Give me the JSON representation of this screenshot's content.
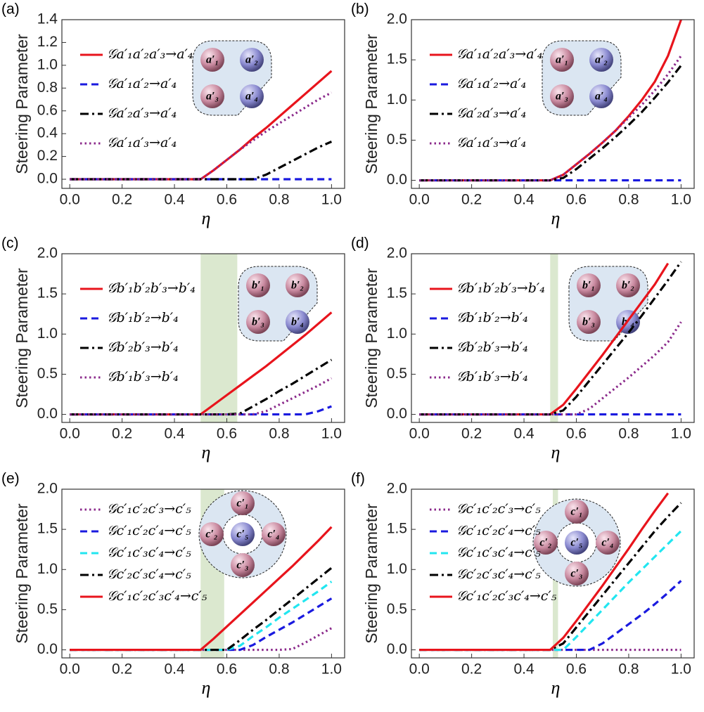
{
  "chart_data": [
    {
      "type": "line",
      "panel_label": "(a)",
      "ylabel": "Steering Parameter",
      "xlabel": "η",
      "x": [
        0,
        0.1,
        0.2,
        0.3,
        0.4,
        0.5,
        0.55,
        0.6,
        0.65,
        0.7,
        0.75,
        0.8,
        0.85,
        0.9,
        0.95,
        1.0
      ],
      "xlim": [
        -0.03,
        1.05
      ],
      "ylim": [
        -0.08,
        1.4
      ],
      "xticks": [
        {
          "value": 0,
          "label": "0.0"
        },
        0.2,
        0.4,
        0.6,
        0.8,
        {
          "value": 1,
          "label": "1.0"
        }
      ],
      "yticks": [
        {
          "value": 0,
          "label": "0.0"
        },
        0.2,
        0.4,
        0.6,
        0.8,
        {
          "value": 1,
          "label": "1.0"
        },
        1.2,
        1.4
      ],
      "inset": {
        "shape": "triangle",
        "labels": [
          "a′₁",
          "a′₂",
          "a′₃",
          "a′₄"
        ],
        "colors": [
          "pink",
          "blue",
          "pink",
          "blue"
        ]
      },
      "series": [
        {
          "name": "𝒢a′₁a′₂a′₃→a′₄",
          "color": "#e8141c",
          "style": "solid",
          "values": [
            0,
            0,
            0,
            0,
            0,
            0,
            0.08,
            0.17,
            0.26,
            0.36,
            0.45,
            0.55,
            0.65,
            0.75,
            0.85,
            0.95
          ]
        },
        {
          "name": "𝒢a′₁a′₂→a′₄",
          "color": "#1a1adf",
          "style": "dashed",
          "values": [
            0,
            0,
            0,
            0,
            0,
            0,
            0,
            0,
            0,
            0,
            0,
            0,
            0,
            0,
            0,
            0
          ]
        },
        {
          "name": "𝒢a′₂a′₃→a′₄",
          "color": "#000000",
          "style": "dashdot",
          "values": [
            0,
            0,
            0,
            0,
            0,
            0,
            0,
            0,
            0,
            0,
            0.04,
            0.1,
            0.16,
            0.22,
            0.28,
            0.33
          ]
        },
        {
          "name": "𝒢a′₁a′₃→a′₄",
          "color": "#8b2a8b",
          "style": "dotted",
          "values": [
            0,
            0,
            0,
            0,
            0,
            0,
            0.08,
            0.17,
            0.26,
            0.34,
            0.42,
            0.49,
            0.56,
            0.63,
            0.7,
            0.76
          ]
        }
      ]
    },
    {
      "type": "line",
      "panel_label": "(b)",
      "ylabel": "Steering Parameter",
      "xlabel": "η",
      "x": [
        0,
        0.1,
        0.2,
        0.3,
        0.4,
        0.5,
        0.55,
        0.6,
        0.65,
        0.7,
        0.75,
        0.8,
        0.85,
        0.9,
        0.95,
        1.0
      ],
      "xlim": [
        -0.03,
        1.05
      ],
      "ylim": [
        -0.1,
        2.0
      ],
      "xticks": [
        {
          "value": 0,
          "label": "0.0"
        },
        0.2,
        0.4,
        0.6,
        0.8,
        {
          "value": 1,
          "label": "1.0"
        }
      ],
      "yticks": [
        {
          "value": 0,
          "label": "0.0"
        },
        0.5,
        {
          "value": 1,
          "label": "1.0"
        },
        1.5,
        {
          "value": 2,
          "label": "2.0"
        }
      ],
      "inset": {
        "shape": "triangle",
        "labels": [
          "a′₁",
          "a′₂",
          "a′₃",
          "a′₄"
        ],
        "colors": [
          "pink",
          "blue",
          "pink",
          "blue"
        ]
      },
      "series": [
        {
          "name": "𝒢a′₁a′₂a′₃→a′₄",
          "color": "#e8141c",
          "style": "solid",
          "values": [
            0,
            0,
            0,
            0,
            0,
            0,
            0.07,
            0.2,
            0.33,
            0.47,
            0.62,
            0.8,
            1.0,
            1.23,
            1.55,
            2.0
          ]
        },
        {
          "name": "𝒢a′₁a′₂→a′₄",
          "color": "#1a1adf",
          "style": "dashed",
          "values": [
            0,
            0,
            0,
            0,
            0,
            0,
            0,
            0,
            0,
            0,
            0,
            0,
            0,
            0,
            0,
            0
          ]
        },
        {
          "name": "𝒢a′₂a′₃→a′₄",
          "color": "#000000",
          "style": "dashdot",
          "values": [
            0,
            0,
            0,
            0,
            0,
            0,
            0.03,
            0.14,
            0.27,
            0.4,
            0.54,
            0.69,
            0.85,
            1.03,
            1.22,
            1.43
          ]
        },
        {
          "name": "𝒢a′₁a′₃→a′₄",
          "color": "#8b2a8b",
          "style": "dotted",
          "values": [
            0,
            0,
            0,
            0,
            0,
            0,
            0.07,
            0.2,
            0.33,
            0.47,
            0.62,
            0.78,
            0.94,
            1.12,
            1.32,
            1.55
          ]
        }
      ]
    },
    {
      "type": "line",
      "panel_label": "(c)",
      "ylabel": "Steering Parameter",
      "xlabel": "η",
      "x": [
        0,
        0.1,
        0.2,
        0.3,
        0.4,
        0.5,
        0.55,
        0.6,
        0.65,
        0.7,
        0.75,
        0.8,
        0.85,
        0.9,
        0.95,
        1.0
      ],
      "xlim": [
        -0.03,
        1.05
      ],
      "ylim": [
        -0.1,
        2.0
      ],
      "shade": [
        0.5,
        0.64
      ],
      "xticks": [
        {
          "value": 0,
          "label": "0.0"
        },
        0.2,
        0.4,
        0.6,
        0.8,
        {
          "value": 1,
          "label": "1.0"
        }
      ],
      "yticks": [
        {
          "value": 0,
          "label": "0.0"
        },
        0.5,
        {
          "value": 1,
          "label": "1.0"
        },
        1.5,
        {
          "value": 2,
          "label": "2.0"
        }
      ],
      "inset": {
        "shape": "triangle",
        "labels": [
          "b′₁",
          "b′₂",
          "b′₃",
          "b′₄"
        ],
        "colors": [
          "pink",
          "pink",
          "pink",
          "blue"
        ]
      },
      "series": [
        {
          "name": "𝒢b′₁b′₂b′₃→b′₄",
          "color": "#e8141c",
          "style": "solid",
          "values": [
            0,
            0,
            0,
            0,
            0,
            0,
            0.12,
            0.24,
            0.36,
            0.48,
            0.6,
            0.73,
            0.86,
            0.99,
            1.13,
            1.27
          ]
        },
        {
          "name": "𝒢b′₁b′₂→b′₄",
          "color": "#1a1adf",
          "style": "dashed",
          "values": [
            0,
            0,
            0,
            0,
            0,
            0,
            0,
            0,
            0,
            0,
            0,
            0,
            0,
            0,
            0.04,
            0.1
          ]
        },
        {
          "name": "𝒢b′₂b′₃→b′₄",
          "color": "#000000",
          "style": "dashdot",
          "values": [
            0,
            0,
            0,
            0,
            0,
            0,
            0,
            0,
            0.01,
            0.1,
            0.19,
            0.29,
            0.38,
            0.48,
            0.58,
            0.68
          ]
        },
        {
          "name": "𝒢b′₁b′₃→b′₄",
          "color": "#8b2a8b",
          "style": "dotted",
          "values": [
            0,
            0,
            0,
            0,
            0,
            0,
            0,
            0,
            0,
            0,
            0.04,
            0.12,
            0.2,
            0.28,
            0.36,
            0.45
          ]
        }
      ]
    },
    {
      "type": "line",
      "panel_label": "(d)",
      "ylabel": "Steering Parameter",
      "xlabel": "η",
      "x": [
        0,
        0.1,
        0.2,
        0.3,
        0.4,
        0.5,
        0.55,
        0.6,
        0.65,
        0.7,
        0.75,
        0.8,
        0.85,
        0.9,
        0.95,
        1.0
      ],
      "xlim": [
        -0.03,
        1.05
      ],
      "ylim": [
        -0.1,
        2.0
      ],
      "shade": [
        0.5,
        0.53
      ],
      "xticks": [
        {
          "value": 0,
          "label": "0.0"
        },
        0.2,
        0.4,
        0.6,
        0.8,
        {
          "value": 1,
          "label": "1.0"
        }
      ],
      "yticks": [
        {
          "value": 0,
          "label": "0.0"
        },
        0.5,
        {
          "value": 1,
          "label": "1.0"
        },
        1.5,
        {
          "value": 2,
          "label": "2.0"
        }
      ],
      "inset": {
        "shape": "triangle",
        "labels": [
          "b′₁",
          "b′₂",
          "b′₃",
          "b′₄"
        ],
        "colors": [
          "pink",
          "pink",
          "pink",
          "blue"
        ]
      },
      "series": [
        {
          "name": "𝒢b′₁b′₂b′₃→b′₄",
          "color": "#e8141c",
          "style": "solid",
          "values": [
            0,
            0,
            0,
            0,
            0,
            0,
            0.12,
            0.32,
            0.53,
            0.74,
            0.96,
            1.18,
            1.4,
            1.62,
            1.88,
            null
          ]
        },
        {
          "name": "𝒢b′₁b′₂→b′₄",
          "color": "#1a1adf",
          "style": "dashed",
          "values": [
            0,
            0,
            0,
            0,
            0,
            0,
            0,
            0,
            0,
            0,
            0,
            0,
            0,
            0,
            0,
            0
          ]
        },
        {
          "name": "𝒢b′₂b′₃→b′₄",
          "color": "#000000",
          "style": "dashdot",
          "values": [
            0,
            0,
            0,
            0,
            0,
            0,
            0.05,
            0.22,
            0.42,
            0.62,
            0.82,
            1.02,
            1.23,
            1.45,
            1.67,
            1.9
          ]
        },
        {
          "name": "𝒢b′₁b′₃→b′₄",
          "color": "#8b2a8b",
          "style": "dotted",
          "values": [
            0,
            0,
            0,
            0,
            0,
            0,
            0,
            0,
            0.07,
            0.2,
            0.33,
            0.46,
            0.6,
            0.74,
            0.9,
            1.15
          ]
        }
      ]
    },
    {
      "type": "line",
      "panel_label": "(e)",
      "ylabel": "Steering Parameter",
      "xlabel": "η",
      "x": [
        0,
        0.1,
        0.2,
        0.3,
        0.4,
        0.5,
        0.55,
        0.6,
        0.65,
        0.7,
        0.75,
        0.8,
        0.85,
        0.9,
        0.95,
        1.0
      ],
      "xlim": [
        -0.03,
        1.05
      ],
      "ylim": [
        -0.1,
        2.0
      ],
      "shade": [
        0.5,
        0.59
      ],
      "xticks": [
        {
          "value": 0,
          "label": "0.0"
        },
        0.2,
        0.4,
        0.6,
        0.8,
        {
          "value": 1,
          "label": "1.0"
        }
      ],
      "yticks": [
        {
          "value": 0,
          "label": "0.0"
        },
        0.5,
        {
          "value": 1,
          "label": "1.0"
        },
        1.5,
        {
          "value": 2,
          "label": "2.0"
        }
      ],
      "inset": {
        "shape": "ring",
        "labels": [
          "c′₁",
          "c′₂",
          "c′₃",
          "c′₄",
          "c′₅"
        ],
        "colors": [
          "pink",
          "pink",
          "pink",
          "pink",
          "blue"
        ]
      },
      "series": [
        {
          "name": "𝒢c′₁c′₂c′₃→c′₅",
          "color": "#8b2a8b",
          "style": "dotted",
          "values": [
            0,
            0,
            0,
            0,
            0,
            0,
            0,
            0,
            0,
            0,
            0,
            0,
            0.01,
            0.09,
            0.18,
            0.27
          ]
        },
        {
          "name": "𝒢c′₁c′₂c′₄→c′₅",
          "color": "#1a1adf",
          "style": "dashed",
          "values": [
            0,
            0,
            0,
            0,
            0,
            0,
            0,
            0,
            0,
            0.06,
            0.16,
            0.25,
            0.34,
            0.44,
            0.54,
            0.64
          ]
        },
        {
          "name": "𝒢c′₁c′₃c′₄→c′₅",
          "color": "#22e6f0",
          "style": "dashed",
          "values": [
            0,
            0,
            0,
            0,
            0,
            0,
            0,
            0,
            0.05,
            0.17,
            0.28,
            0.4,
            0.51,
            0.62,
            0.73,
            0.85
          ]
        },
        {
          "name": "𝒢c′₂c′₃c′₄→c′₅",
          "color": "#000000",
          "style": "dashdot",
          "values": [
            0,
            0,
            0,
            0,
            0,
            0,
            0,
            0,
            0.12,
            0.25,
            0.37,
            0.5,
            0.63,
            0.76,
            0.89,
            1.02
          ]
        },
        {
          "name": "𝒢c′₁c′₂c′₃c′₄→c′₅",
          "color": "#e8141c",
          "style": "solid",
          "values": [
            0,
            0,
            0,
            0,
            0,
            0,
            0.14,
            0.29,
            0.44,
            0.59,
            0.74,
            0.89,
            1.04,
            1.2,
            1.36,
            1.53
          ]
        }
      ]
    },
    {
      "type": "line",
      "panel_label": "(f)",
      "ylabel": "Steering Parameter",
      "xlabel": "η",
      "x": [
        0,
        0.1,
        0.2,
        0.3,
        0.4,
        0.5,
        0.55,
        0.6,
        0.65,
        0.7,
        0.75,
        0.8,
        0.85,
        0.9,
        0.95,
        1.0
      ],
      "xlim": [
        -0.03,
        1.05
      ],
      "ylim": [
        -0.1,
        2.0
      ],
      "shade": [
        0.51,
        0.53
      ],
      "xticks": [
        {
          "value": 0,
          "label": "0.0"
        },
        0.2,
        0.4,
        0.6,
        0.8,
        {
          "value": 1,
          "label": "1.0"
        }
      ],
      "yticks": [
        {
          "value": 0,
          "label": "0.0"
        },
        0.5,
        {
          "value": 1,
          "label": "1.0"
        },
        1.5,
        {
          "value": 2,
          "label": "2.0"
        }
      ],
      "inset": {
        "shape": "ring",
        "labels": [
          "c′₁",
          "c′₂",
          "c′₃",
          "c′₄",
          "c′₅"
        ],
        "colors": [
          "pink",
          "pink",
          "pink",
          "pink",
          "blue"
        ]
      },
      "series": [
        {
          "name": "𝒢c′₁c′₂c′₃→c′₅",
          "color": "#8b2a8b",
          "style": "dotted",
          "values": [
            0,
            0,
            0,
            0,
            0,
            0,
            0,
            0,
            0,
            0,
            0,
            0,
            0,
            0,
            0,
            0
          ]
        },
        {
          "name": "𝒢c′₁c′₂c′₄→c′₅",
          "color": "#1a1adf",
          "style": "dashed",
          "values": [
            0,
            0,
            0,
            0,
            0,
            0,
            0,
            0,
            0,
            0.08,
            0.2,
            0.32,
            0.44,
            0.57,
            0.71,
            0.86
          ]
        },
        {
          "name": "𝒢c′₁c′₃c′₄→c′₅",
          "color": "#22e6f0",
          "style": "dashed",
          "values": [
            0,
            0,
            0,
            0,
            0,
            0,
            0,
            0.16,
            0.33,
            0.5,
            0.67,
            0.84,
            1.0,
            1.16,
            1.32,
            1.48
          ]
        },
        {
          "name": "𝒢c′₂c′₃c′₄→c′₅",
          "color": "#000000",
          "style": "dashdot",
          "values": [
            0,
            0,
            0,
            0,
            0,
            0,
            0.08,
            0.28,
            0.48,
            0.68,
            0.88,
            1.08,
            1.28,
            1.48,
            1.66,
            1.83
          ]
        },
        {
          "name": "𝒢c′₁c′₂c′₃c′₄→c′₅",
          "color": "#e8141c",
          "style": "solid",
          "values": [
            0,
            0,
            0,
            0,
            0,
            0,
            0.15,
            0.36,
            0.58,
            0.8,
            1.03,
            1.26,
            1.5,
            1.73,
            1.95,
            null
          ]
        }
      ]
    }
  ]
}
